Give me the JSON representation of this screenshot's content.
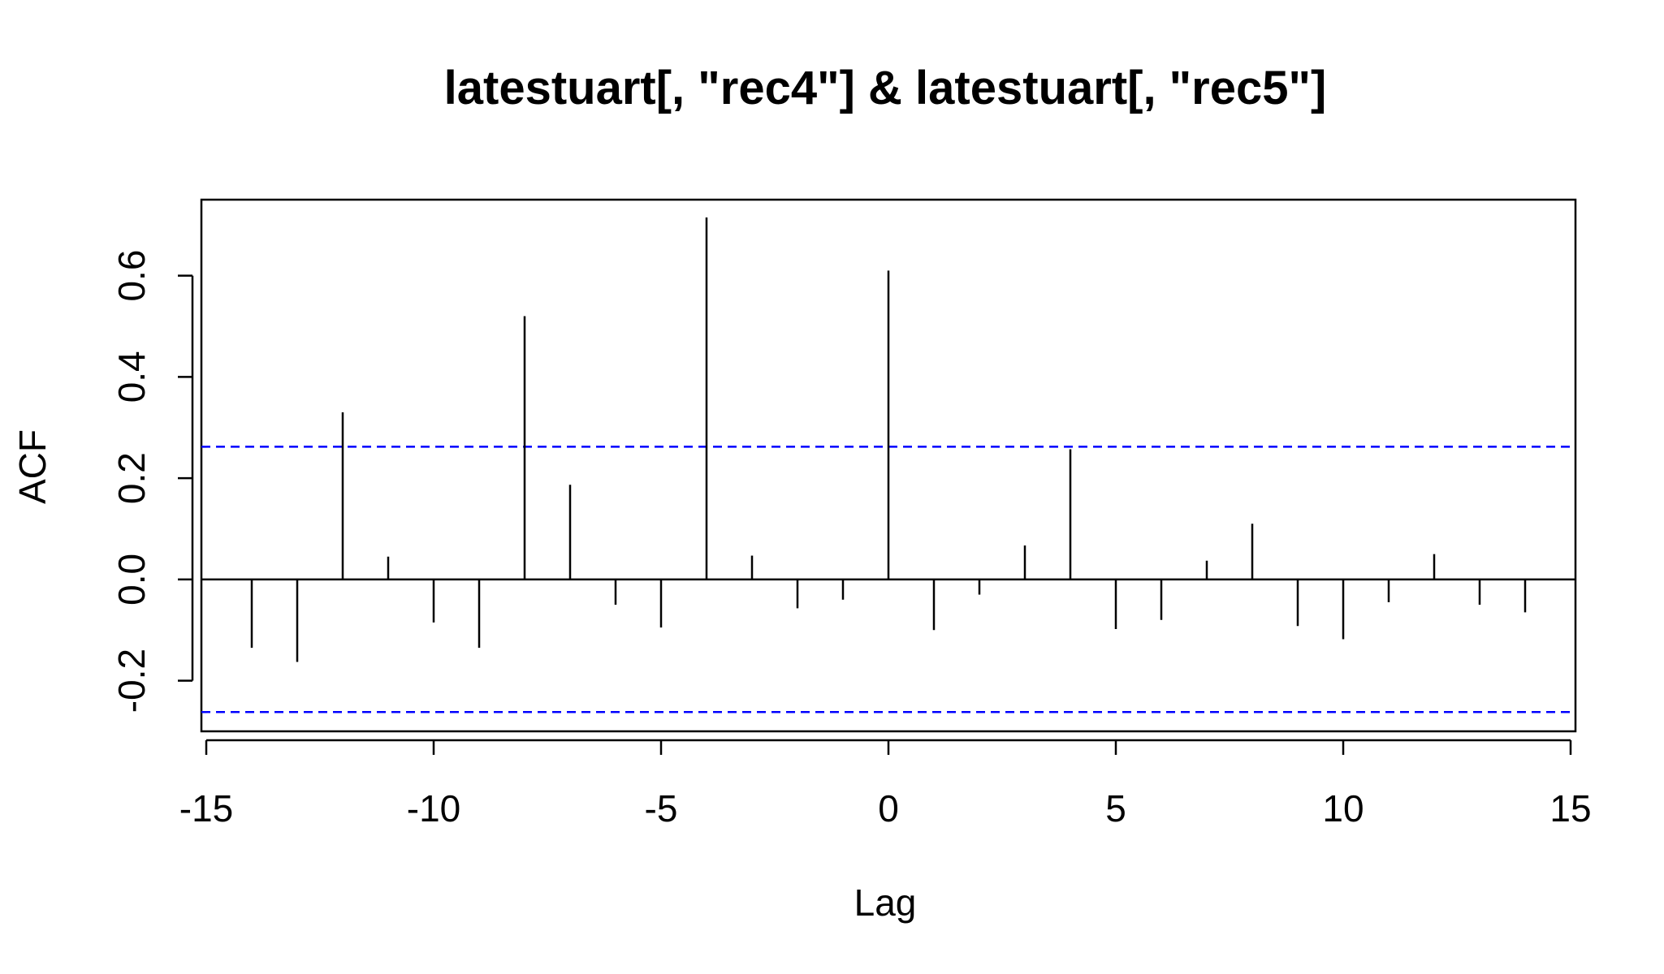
{
  "chart_data": {
    "type": "bar",
    "title": "latestuart[, \"rec4\"] & latestuart[, \"rec5\"]",
    "xlabel": "Lag",
    "ylabel": "ACF",
    "xlim": [
      -15,
      15
    ],
    "ylim": [
      -0.3,
      0.75
    ],
    "x_ticks": [
      -15,
      -10,
      -5,
      0,
      5,
      10,
      15
    ],
    "x_tick_labels": [
      "-15",
      "-10",
      "-5",
      "0",
      "5",
      "10",
      "15"
    ],
    "y_ticks": [
      -0.2,
      0.0,
      0.2,
      0.4,
      0.6
    ],
    "y_tick_labels": [
      "-0.2",
      "0.0",
      "0.2",
      "0.4",
      "0.6"
    ],
    "confidence_bounds": [
      0.262,
      -0.262
    ],
    "confidence_color": "#0000ff",
    "grid": false,
    "series": [
      {
        "lags": [
          -14,
          -13,
          -12,
          -11,
          -10,
          -9,
          -8,
          -7,
          -6,
          -5,
          -4,
          -3,
          -2,
          -1,
          0,
          1,
          2,
          3,
          4,
          5,
          6,
          7,
          8,
          9,
          10,
          11,
          12,
          13,
          14
        ],
        "values": [
          -0.135,
          -0.163,
          0.33,
          0.045,
          -0.085,
          -0.135,
          0.52,
          0.187,
          -0.05,
          -0.095,
          0.715,
          0.047,
          -0.057,
          -0.04,
          0.61,
          -0.1,
          -0.03,
          0.067,
          0.257,
          -0.098,
          -0.08,
          0.037,
          0.11,
          -0.092,
          -0.118,
          -0.045,
          0.05,
          -0.05,
          -0.065
        ]
      }
    ]
  }
}
